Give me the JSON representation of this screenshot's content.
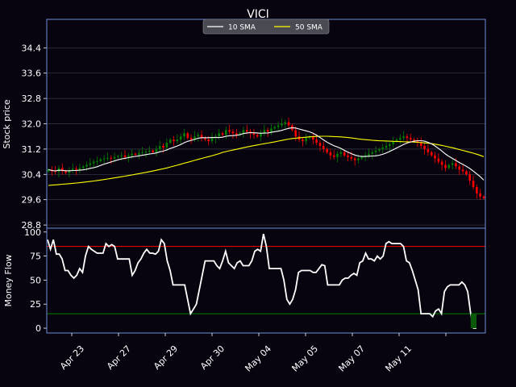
{
  "chart_data": [
    {
      "type": "candlestick",
      "title": "VICI",
      "ylabel": "Stock price",
      "ylim": [
        28.7,
        35.3
      ],
      "yticks": [
        "28.8",
        "29.6",
        "30.4",
        "31.2",
        "32.0",
        "32.8",
        "33.6",
        "34.4"
      ],
      "xticks": [
        "Apr 23",
        "Apr 27",
        "Apr 29",
        "Apr 30",
        "May 04",
        "May 05",
        "May 07",
        "May 11"
      ],
      "legend": {
        "placement": "top-center",
        "items": [
          "10 SMA",
          "50 SMA"
        ]
      },
      "colors": {
        "up": "#008000",
        "down": "#ff0000",
        "sma10": "#ffffff",
        "sma50": "#ffff00",
        "panel_border": "#6f8fd8"
      },
      "grid": true,
      "close_series": [
        30.55,
        30.5,
        30.48,
        30.6,
        30.5,
        30.45,
        30.52,
        30.58,
        30.55,
        30.6,
        30.65,
        30.7,
        30.75,
        30.8,
        30.82,
        30.88,
        30.9,
        30.92,
        30.9,
        30.95,
        30.98,
        31.0,
        30.95,
        31.0,
        31.05,
        31.02,
        31.08,
        31.1,
        31.12,
        31.15,
        31.1,
        31.2,
        31.3,
        31.25,
        31.4,
        31.5,
        31.45,
        31.5,
        31.6,
        31.7,
        31.55,
        31.5,
        31.6,
        31.65,
        31.55,
        31.5,
        31.45,
        31.55,
        31.6,
        31.7,
        31.65,
        31.8,
        31.75,
        31.7,
        31.65,
        31.7,
        31.8,
        31.75,
        31.7,
        31.65,
        31.6,
        31.7,
        31.8,
        31.75,
        31.85,
        31.9,
        31.95,
        32.0,
        32.05,
        31.95,
        31.8,
        31.6,
        31.5,
        31.45,
        31.55,
        31.6,
        31.5,
        31.4,
        31.3,
        31.2,
        31.1,
        31.0,
        30.95,
        31.05,
        31.1,
        31.0,
        30.95,
        30.9,
        30.85,
        30.9,
        30.95,
        31.0,
        31.05,
        31.1,
        31.15,
        31.2,
        31.25,
        31.3,
        31.35,
        31.45,
        31.5,
        31.55,
        31.6,
        31.55,
        31.5,
        31.45,
        31.4,
        31.3,
        31.2,
        31.1,
        31.0,
        30.9,
        30.8,
        30.7,
        30.6,
        30.7,
        30.75,
        30.65,
        30.55,
        30.5,
        30.4,
        30.2,
        30.0,
        29.8,
        29.7,
        29.65
      ]
    },
    {
      "type": "line",
      "ylabel": "Money Flow",
      "ylim": [
        -5,
        104
      ],
      "yticks": [
        "0",
        "25",
        "50",
        "75",
        "100"
      ],
      "xticks": [
        "Apr 23",
        "Apr 27",
        "Apr 29",
        "Apr 30",
        "May 04",
        "May 05",
        "May 07",
        "May 11"
      ],
      "reference_lines": [
        {
          "value": 85,
          "color": "#ff0000"
        },
        {
          "value": 15,
          "color": "#008000"
        }
      ],
      "values": [
        92,
        82,
        92,
        77,
        77,
        72,
        60,
        60,
        55,
        52,
        55,
        62,
        58,
        75,
        85,
        82,
        80,
        78,
        78,
        78,
        88,
        85,
        87,
        85,
        72,
        72,
        72,
        72,
        72,
        55,
        60,
        68,
        72,
        78,
        82,
        78,
        78,
        77,
        80,
        92,
        88,
        70,
        60,
        45,
        45,
        45,
        45,
        45,
        30,
        15,
        20,
        25,
        40,
        55,
        70,
        70,
        70,
        70,
        65,
        62,
        70,
        80,
        68,
        65,
        62,
        68,
        70,
        65,
        65,
        65,
        70,
        80,
        82,
        80,
        98,
        85,
        62,
        62,
        62,
        62,
        62,
        50,
        30,
        25,
        30,
        40,
        58,
        60,
        60,
        60,
        60,
        58,
        58,
        62,
        66,
        65,
        45,
        45,
        45,
        45,
        45,
        50,
        52,
        52,
        55,
        57,
        55,
        68,
        70,
        78,
        72,
        72,
        70,
        75,
        72,
        75,
        88,
        90,
        88,
        88,
        88,
        88,
        85,
        70,
        68,
        60,
        50,
        40,
        15,
        15,
        15,
        15,
        12,
        18,
        20,
        15,
        38,
        43,
        45,
        45,
        45,
        45,
        48,
        45,
        38,
        15,
        0,
        0
      ]
    }
  ]
}
